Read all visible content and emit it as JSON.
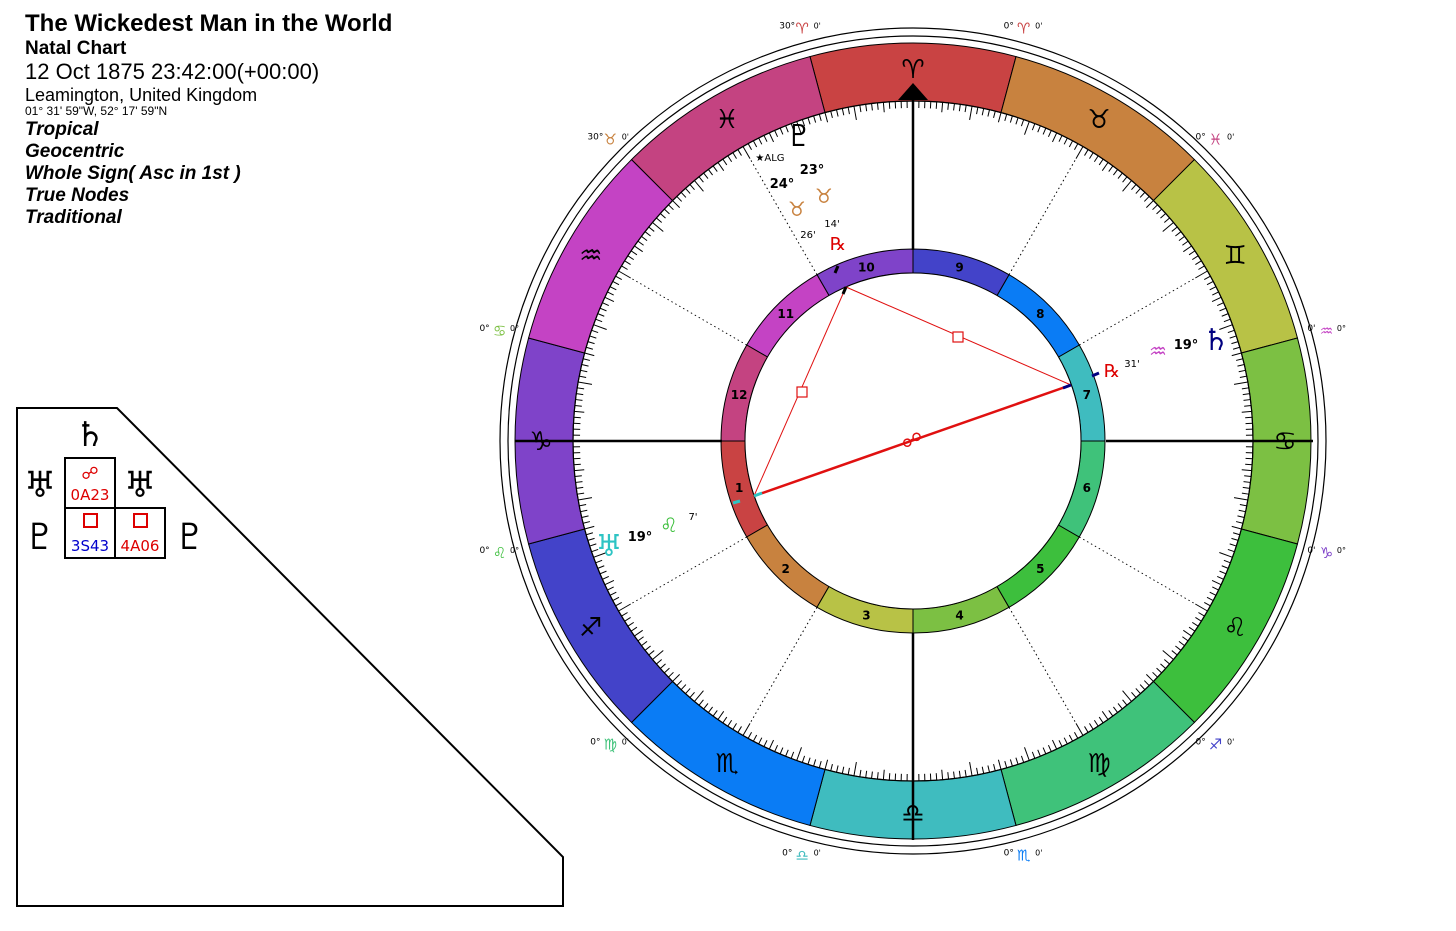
{
  "header": {
    "title": "The Wickedest Man in the World",
    "subtitle": "Natal Chart",
    "datetime": "12 Oct 1875 23:42:00(+00:00)",
    "location": "Leamington, United Kingdom",
    "coordinates": "01° 31' 59\"W, 52° 17' 59\"N",
    "options": [
      "Tropical",
      "Geocentric",
      "Whole Sign( Asc in 1st )",
      "True Nodes",
      "Traditional"
    ]
  },
  "aspect_grid": {
    "planets": [
      {
        "name": "saturn",
        "glyph": "♄",
        "color": "#000080"
      },
      {
        "name": "uranus",
        "glyph": "♅",
        "color": "#2ec4c4"
      },
      {
        "name": "pluto",
        "glyph": "♇",
        "color": "#f5c9a0"
      }
    ],
    "cells": [
      {
        "glyph": "☍",
        "label": "0A23",
        "color": "#dd0000",
        "label_color": "#dd0000"
      },
      {
        "glyph": "□",
        "label": "3S43",
        "color": "#dd0000",
        "label_color": "#0000cc"
      },
      {
        "glyph": "□",
        "label": "4A06",
        "color": "#dd0000",
        "label_color": "#dd0000"
      }
    ]
  },
  "wheel": {
    "signs": [
      {
        "name": "aries",
        "glyph": "♈",
        "color": "#c94343"
      },
      {
        "name": "taurus",
        "glyph": "♉",
        "color": "#c8823f"
      },
      {
        "name": "gemini",
        "glyph": "♊",
        "color": "#b8c246"
      },
      {
        "name": "cancer",
        "glyph": "♋",
        "color": "#7cc043"
      },
      {
        "name": "leo",
        "glyph": "♌",
        "color": "#3dbf3d"
      },
      {
        "name": "virgo",
        "glyph": "♍",
        "color": "#3fc27a"
      },
      {
        "name": "libra",
        "glyph": "♎",
        "color": "#3fbcbf"
      },
      {
        "name": "scorpio",
        "glyph": "♏",
        "color": "#0a7cf5"
      },
      {
        "name": "sagittarius",
        "glyph": "♐",
        "color": "#4343c9"
      },
      {
        "name": "capricorn",
        "glyph": "♑",
        "color": "#7f43c9"
      },
      {
        "name": "aquarius",
        "glyph": "♒",
        "color": "#c443c4"
      },
      {
        "name": "pisces",
        "glyph": "♓",
        "color": "#c44381"
      }
    ],
    "houses": [
      {
        "number": "1",
        "color": "#c94343"
      },
      {
        "number": "2",
        "color": "#c8823f"
      },
      {
        "number": "3",
        "color": "#b8c246"
      },
      {
        "number": "4",
        "color": "#7cc043"
      },
      {
        "number": "5",
        "color": "#3dbf3d"
      },
      {
        "number": "6",
        "color": "#3fc27a"
      },
      {
        "number": "7",
        "color": "#3fbcbf"
      },
      {
        "number": "8",
        "color": "#0a7cf5"
      },
      {
        "number": "9",
        "color": "#4343c9"
      },
      {
        "number": "10",
        "color": "#7f43c9"
      },
      {
        "number": "11",
        "color": "#c443c4"
      },
      {
        "number": "12",
        "color": "#c44381"
      }
    ],
    "cusp_labels": [
      {
        "glyph": "♈",
        "deg": "30°",
        "min": "0'",
        "color": "#c94343"
      },
      {
        "glyph": "♈",
        "deg": "0°",
        "min": "0'",
        "color": "#c94343"
      },
      {
        "glyph": "♓",
        "deg": "0°",
        "min": "0'",
        "color": "#c44381"
      },
      {
        "glyph": "♒",
        "deg": "0'",
        "min": "0°",
        "color": "#c443c4"
      },
      {
        "glyph": "♑",
        "deg": "0'",
        "min": "0°",
        "color": "#7f43c9"
      },
      {
        "glyph": "♐",
        "deg": "0°",
        "min": "0'",
        "color": "#4343c9"
      },
      {
        "glyph": "♏",
        "deg": "0°",
        "min": "0'",
        "color": "#0a7cf5"
      },
      {
        "glyph": "♎",
        "deg": "0°",
        "min": "0'",
        "color": "#3fbcbf"
      },
      {
        "glyph": "♍",
        "deg": "0°",
        "min": "0'",
        "color": "#3fc27a"
      },
      {
        "glyph": "♌",
        "deg": "0°",
        "min": "0°",
        "color": "#3dbf3d"
      },
      {
        "glyph": "♋",
        "deg": "0°",
        "min": "0°",
        "color": "#7cc043"
      },
      {
        "glyph": "♉",
        "deg": "30°",
        "min": "0'",
        "color": "#c8823f"
      }
    ],
    "planets": {
      "pluto": {
        "glyph": "♇",
        "color": "#000000",
        "deg": "23°",
        "sign_glyph": "♉",
        "sign_color": "#c8823f",
        "min": "14'",
        "retro": "℞",
        "retro_color": "#dd0000",
        "star": "★ALG"
      },
      "uranus": {
        "glyph": "♅",
        "color": "#2ec4c4",
        "deg": "19°",
        "sign_glyph": "♌",
        "sign_color": "#3dbf3d",
        "min": "7'"
      },
      "saturn": {
        "glyph": "♄",
        "color": "#000080",
        "deg": "19°",
        "sign_glyph": "♒",
        "sign_color": "#c443c4",
        "min": "31'",
        "retro": "℞",
        "retro_color": "#dd0000"
      },
      "algol": {
        "deg": "24°",
        "sign_glyph": "♉",
        "sign_color": "#c8823f",
        "min": "26'"
      }
    },
    "aspects": {
      "opposition_glyph": "☍"
    }
  }
}
